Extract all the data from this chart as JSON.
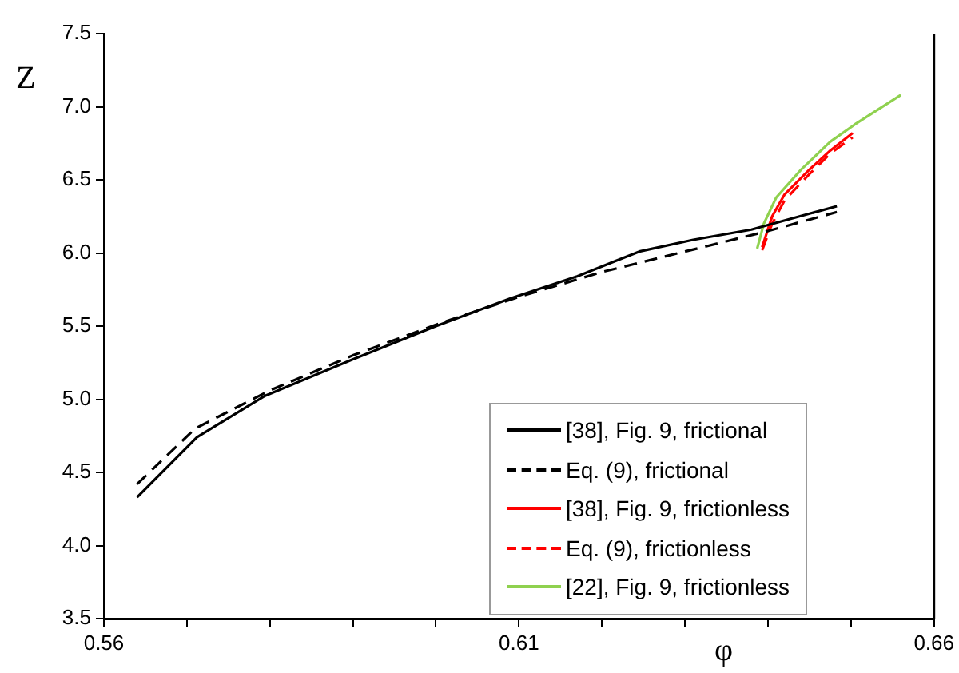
{
  "chart_data": {
    "type": "line",
    "xlabel": "φ",
    "ylabel": "Z",
    "xlim": [
      0.56,
      0.66
    ],
    "xticks": [
      0.56,
      {
        "value": 0.57,
        "label": null
      },
      {
        "value": 0.58,
        "label": null
      },
      {
        "value": 0.59,
        "label": null
      },
      {
        "value": 0.6,
        "label": null
      },
      0.61,
      {
        "value": 0.62,
        "label": null
      },
      {
        "value": 0.63,
        "label": null
      },
      {
        "value": 0.64,
        "label": null
      },
      {
        "value": 0.65,
        "label": null
      },
      0.66
    ],
    "ylim": [
      3.5,
      7.5
    ],
    "yticks": [
      3.5,
      {
        "value": 4,
        "label": "4.0"
      },
      4.5,
      {
        "value": 5,
        "label": "5.0"
      },
      5.5,
      {
        "value": 6,
        "label": "6.0"
      },
      6.5,
      {
        "value": 7,
        "label": "7.0"
      },
      7.5
    ],
    "grid": false,
    "legend": "bottom right",
    "marker": "none",
    "series": [
      {
        "name": "[38], Fig. 9, frictional",
        "color": "#000000",
        "line_style": "solid",
        "x": [
          0.564,
          0.5712,
          0.5793,
          0.5899,
          0.6,
          0.609,
          0.617,
          0.6245,
          0.631,
          0.638,
          0.6483
        ],
        "values": [
          4.33,
          4.74,
          5.02,
          5.27,
          5.5,
          5.69,
          5.84,
          6.01,
          6.09,
          6.16,
          6.32
        ]
      },
      {
        "name": "Eq. (9), frictional",
        "color": "#000000",
        "line_style": "dashed",
        "x": [
          0.564,
          0.571,
          0.58,
          0.59,
          0.6,
          0.61,
          0.62,
          0.63,
          0.64,
          0.6483
        ],
        "values": [
          4.42,
          4.8,
          5.06,
          5.3,
          5.51,
          5.7,
          5.87,
          6.01,
          6.15,
          6.28
        ]
      },
      {
        "name": "[38], Fig. 9, frictionless",
        "color": "#ff0000",
        "line_style": "solid",
        "x": [
          0.6393,
          0.6405,
          0.642,
          0.645,
          0.6475,
          0.6502
        ],
        "values": [
          6.04,
          6.25,
          6.4,
          6.57,
          6.7,
          6.82
        ]
      },
      {
        "name": "Eq. (9), frictionless",
        "color": "#ff0000",
        "line_style": "dashed",
        "x": [
          0.6393,
          0.6405,
          0.642,
          0.645,
          0.6475,
          0.6502
        ],
        "values": [
          6.02,
          6.2,
          6.36,
          6.54,
          6.68,
          6.79
        ]
      },
      {
        "name": "[22], Fig. 9, frictionless",
        "color": "#8fd14f",
        "line_style": "solid",
        "x": [
          0.6387,
          0.6395,
          0.641,
          0.644,
          0.6475,
          0.6505,
          0.656
        ],
        "values": [
          6.03,
          6.2,
          6.38,
          6.57,
          6.76,
          6.88,
          7.08
        ]
      }
    ]
  }
}
